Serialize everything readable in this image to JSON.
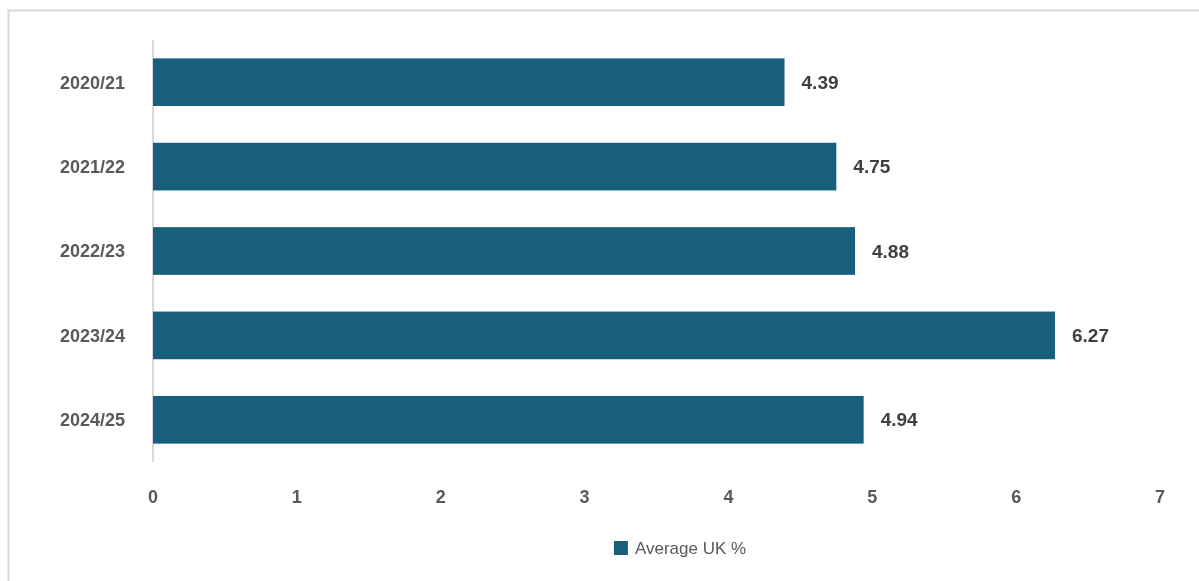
{
  "chart_data": {
    "type": "bar",
    "orientation": "horizontal",
    "categories": [
      "2020/21",
      "2021/22",
      "2022/23",
      "2023/24",
      "2024/25"
    ],
    "series": [
      {
        "name": "Average UK %",
        "color": "#185f7e",
        "values": [
          4.39,
          4.75,
          4.88,
          6.27,
          4.94
        ]
      }
    ],
    "xlim": [
      0,
      7
    ],
    "xticks": [
      0,
      1,
      2,
      3,
      4,
      5,
      6,
      7
    ],
    "data_labels": true,
    "legend": "bottom",
    "grid": false
  }
}
